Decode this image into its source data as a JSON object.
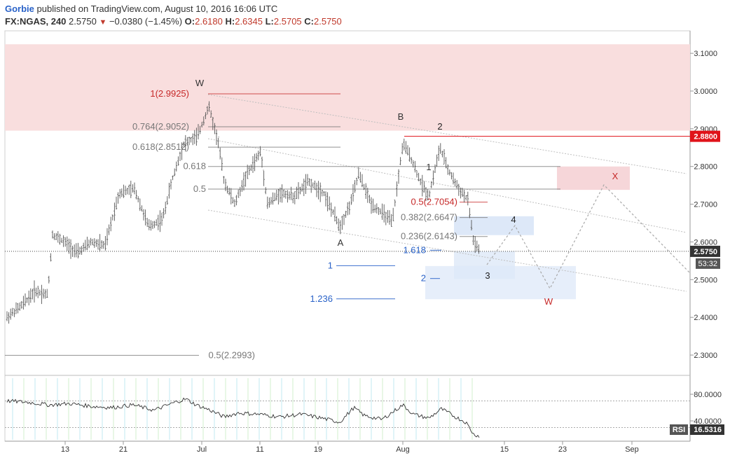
{
  "header": {
    "author": "Gorbie",
    "published_text": "published on TradingView.com, August 10, 2016 16:06 UTC",
    "symbol": "FX:NGAS, 240",
    "last": "2.5750",
    "change": "−0.0380 (−1.45%)",
    "open_label": "O:",
    "open": "2.6180",
    "high_label": "H:",
    "high": "2.6345",
    "low_label": "L:",
    "low": "2.5705",
    "close_label": "C:",
    "close": "2.5750",
    "down_arrow": "▼"
  },
  "chart_data": {
    "type": "line",
    "symbol": "FX:NGAS",
    "timeframe": "240",
    "price_axis": {
      "ticks": [
        "3.1000",
        "3.0000",
        "2.9000",
        "2.8000",
        "2.7000",
        "2.6000",
        "2.5000",
        "2.4000",
        "2.3000"
      ],
      "ylim": [
        2.21,
        3.18
      ]
    },
    "time_axis": {
      "ticks": [
        "13",
        "21",
        "Jul",
        "11",
        "19",
        "Aug",
        "15",
        "23",
        "Sep"
      ]
    },
    "price_badges": {
      "resistance": "2.8800",
      "last": "2.5750",
      "countdown": "53:32"
    },
    "price_series_approx": [
      {
        "x": "Jun 8",
        "y": 2.4
      },
      {
        "x": "Jun 10",
        "y": 2.47
      },
      {
        "x": "Jun 12",
        "y": 2.62
      },
      {
        "x": "Jun 15",
        "y": 2.59
      },
      {
        "x": "Jun 18",
        "y": 2.62
      },
      {
        "x": "Jun 21",
        "y": 2.73
      },
      {
        "x": "Jun 24",
        "y": 2.68
      },
      {
        "x": "Jun 27",
        "y": 2.77
      },
      {
        "x": "Jun 29",
        "y": 2.88
      },
      {
        "x": "Jul 1",
        "y": 2.99
      },
      {
        "x": "Jul 3",
        "y": 2.83
      },
      {
        "x": "Jul 6",
        "y": 2.76
      },
      {
        "x": "Jul 9",
        "y": 2.82
      },
      {
        "x": "Jul 11",
        "y": 2.72
      },
      {
        "x": "Jul 15",
        "y": 2.74
      },
      {
        "x": "Jul 19",
        "y": 2.73
      },
      {
        "x": "Jul 22",
        "y": 2.63
      },
      {
        "x": "Jul 25",
        "y": 2.78
      },
      {
        "x": "Jul 28",
        "y": 2.66
      },
      {
        "x": "Jul 30",
        "y": 2.88
      },
      {
        "x": "Aug 2",
        "y": 2.74
      },
      {
        "x": "Aug 4",
        "y": 2.86
      },
      {
        "x": "Aug 7",
        "y": 2.74
      },
      {
        "x": "Aug 9",
        "y": 2.7
      },
      {
        "x": "Aug 10",
        "y": 2.575
      }
    ],
    "fib_levels": [
      {
        "label": "1(2.9925)",
        "value": 2.9925,
        "color": "#c62828"
      },
      {
        "label": "0.764(2.9052)",
        "value": 2.9052,
        "color": "#777777"
      },
      {
        "label": "0.618(2.8512)",
        "value": 2.8512,
        "color": "#777777"
      },
      {
        "label": "0.618",
        "value": 2.8,
        "color": "#777777"
      },
      {
        "label": "0.5",
        "value": 2.74,
        "color": "#777777"
      },
      {
        "label": "0.5(2.7054)",
        "value": 2.7054,
        "color": "#c62828"
      },
      {
        "label": "0.382(2.6647)",
        "value": 2.6647,
        "color": "#777777"
      },
      {
        "label": "0.236(2.6143)",
        "value": 2.6143,
        "color": "#777777"
      },
      {
        "label": "1.618",
        "value": 2.578,
        "color": "#2962c8"
      },
      {
        "label": "1",
        "value": 2.537,
        "color": "#2962c8"
      },
      {
        "label": "2",
        "value": 2.503,
        "color": "#2962c8"
      },
      {
        "label": "1.236",
        "value": 2.449,
        "color": "#2962c8"
      },
      {
        "label": "0.5(2.2993)",
        "value": 2.2993,
        "color": "#777777"
      }
    ],
    "wave_labels": [
      "W",
      "A",
      "B",
      "1",
      "2",
      "3",
      "4",
      "X",
      "W"
    ],
    "indicator": {
      "name": "RSI",
      "value": "16.5316",
      "ticks": [
        "80.0000",
        "40.0000"
      ]
    },
    "colors": {
      "resistance_zone": "#f9dede",
      "target_zone_red": "#f6d6d9",
      "target_zone_blue": "#dde8f8",
      "wave_red": "#c62828",
      "badge_red": "#e0131a",
      "badge_dark": "#333333",
      "fib_blue": "#2962c8"
    },
    "grid": false
  }
}
